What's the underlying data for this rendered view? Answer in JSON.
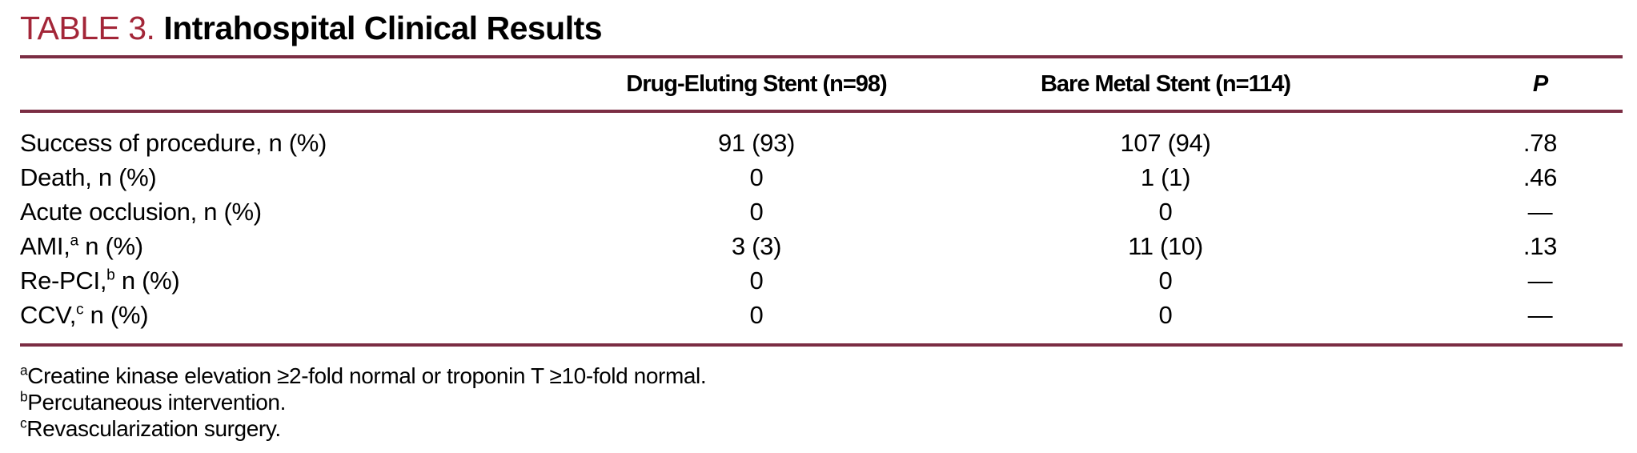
{
  "colors": {
    "title_accent": "#A32638",
    "rule": "#7B2D43",
    "text": "#000000",
    "background": "#ffffff"
  },
  "table": {
    "tag": "TABLE 3.",
    "title": "Intrahospital Clinical Results",
    "header": {
      "col_label": "",
      "col_des": "Drug-Eluting Stent (n=98)",
      "col_bms": "Bare Metal Stent (n=114)",
      "col_p": "P"
    },
    "rows": [
      {
        "label": "Success of procedure,",
        "label_sup": "",
        "label_rest": " n (%)",
        "des": "91 (93)",
        "bms": "107 (94)",
        "p": ".78"
      },
      {
        "label": "Death,",
        "label_sup": "",
        "label_rest": " n (%)",
        "des": "0",
        "bms": "1 (1)",
        "p": ".46"
      },
      {
        "label": "Acute occlusion,",
        "label_sup": "",
        "label_rest": " n (%)",
        "des": "0",
        "bms": "0",
        "p": "—"
      },
      {
        "label": "AMI,",
        "label_sup": "a",
        "label_rest": " n (%)",
        "des": "3 (3)",
        "bms": "11 (10)",
        "p": ".13"
      },
      {
        "label": "Re-PCI,",
        "label_sup": "b",
        "label_rest": " n (%)",
        "des": "0",
        "bms": "0",
        "p": "—"
      },
      {
        "label": "CCV,",
        "label_sup": "c",
        "label_rest": " n (%)",
        "des": "0",
        "bms": "0",
        "p": "—"
      }
    ],
    "footnotes": [
      {
        "sup": "a",
        "text": "Creatine kinase elevation ≥2-fold normal or troponin T ≥10-fold normal."
      },
      {
        "sup": "b",
        "text": "Percutaneous intervention."
      },
      {
        "sup": "c",
        "text": "Revascularization surgery."
      }
    ]
  }
}
